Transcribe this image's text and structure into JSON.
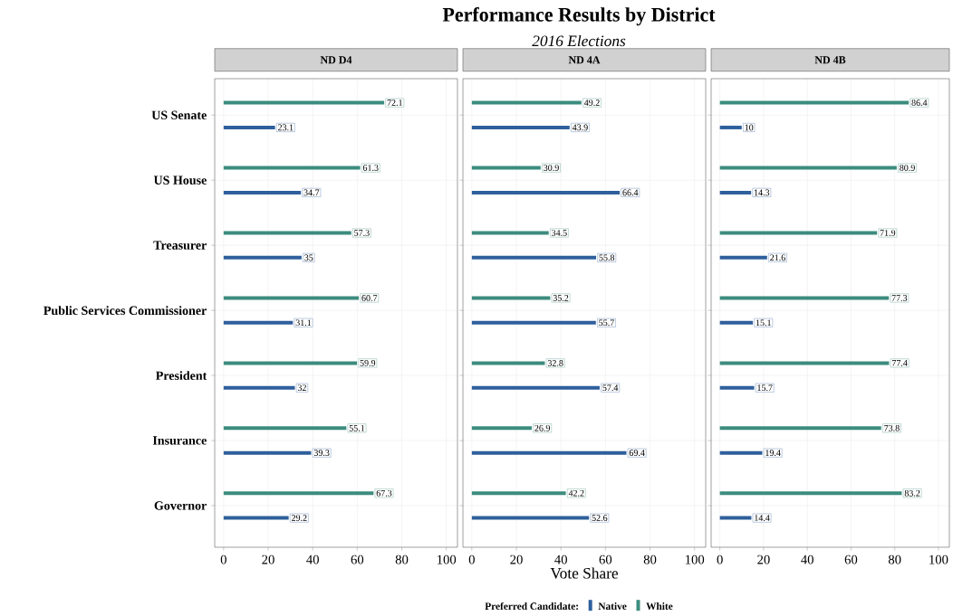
{
  "chart_data": [
    {
      "type": "bar",
      "orientation": "horizontal",
      "title": "ND D4",
      "annotations": [
        "Performance Results by District",
        "2016 Elections"
      ],
      "legend_title": "Preferred Candidate:",
      "legend": "bottom",
      "grid": true,
      "data_labels": true,
      "categories": [
        "US Senate",
        "US House",
        "Treasurer",
        "Public Services Commissioner",
        "President",
        "Insurance",
        "Governor"
      ],
      "xlim": [
        -4,
        105
      ],
      "xticks": [
        0,
        20,
        40,
        60,
        80,
        100
      ],
      "series": [
        {
          "name": "Native",
          "color": "#2f5f9c",
          "values": [
            23.1,
            34.7,
            35,
            31.1,
            32,
            39.3,
            29.2
          ]
        },
        {
          "name": "White",
          "color": "#3c8c7e",
          "values": [
            72.1,
            61.3,
            57.3,
            60.7,
            59.9,
            55.1,
            67.3
          ]
        }
      ]
    },
    {
      "type": "bar",
      "orientation": "horizontal",
      "title": "ND 4A",
      "xlabel": "Vote Share",
      "grid": true,
      "data_labels": true,
      "tick_labels": "x",
      "categories": [
        null,
        null,
        null,
        null,
        null,
        null,
        null
      ],
      "xlim": [
        -4,
        105
      ],
      "xticks": [
        0,
        20,
        40,
        60,
        80,
        100
      ],
      "series": [
        {
          "color": "#2f5f9c",
          "values": [
            43.9,
            66.4,
            55.8,
            55.7,
            57.4,
            69.4,
            52.6
          ]
        },
        {
          "color": "#3c8c7e",
          "values": [
            49.2,
            30.9,
            34.5,
            35.2,
            32.8,
            26.9,
            42.2
          ]
        }
      ]
    },
    {
      "type": "bar",
      "orientation": "horizontal",
      "title": "ND 4B",
      "grid": true,
      "data_labels": true,
      "tick_labels": "x",
      "categories": [
        null,
        null,
        null,
        null,
        null,
        null,
        null
      ],
      "xlim": [
        -4,
        105
      ],
      "xticks": [
        0,
        20,
        40,
        60,
        80,
        100
      ],
      "series": [
        {
          "color": "#2f5f9c",
          "values": [
            10,
            14.3,
            21.6,
            15.1,
            15.7,
            19.4,
            14.4
          ]
        },
        {
          "color": "#3c8c7e",
          "values": [
            86.4,
            80.9,
            71.9,
            77.3,
            77.4,
            73.8,
            83.2
          ]
        }
      ]
    }
  ]
}
